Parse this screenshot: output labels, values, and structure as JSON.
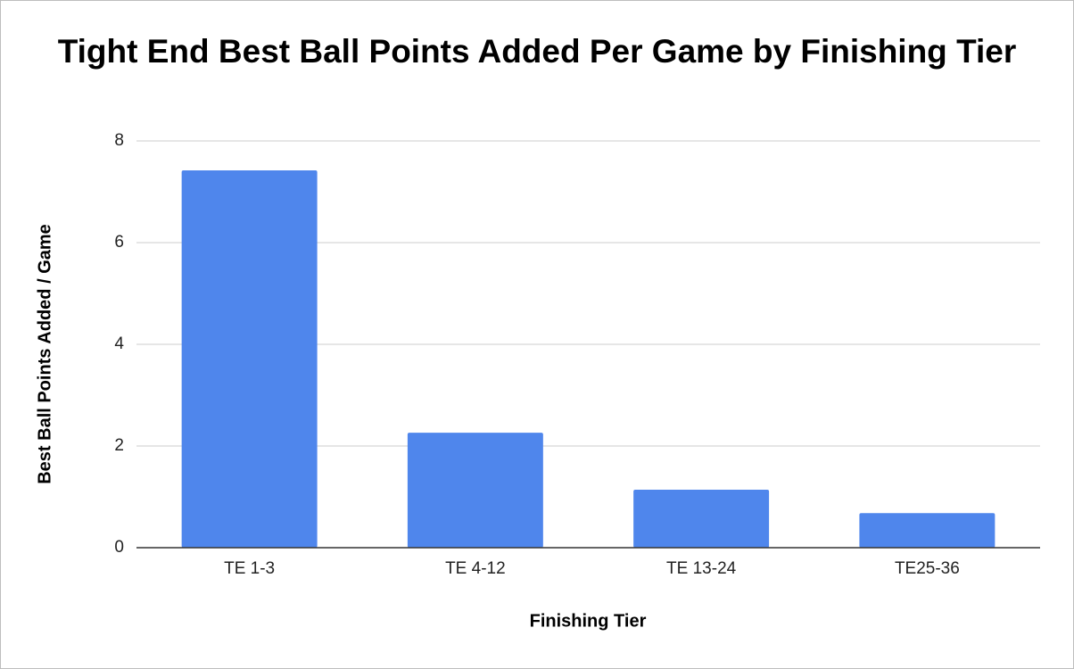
{
  "chart_data": {
    "type": "bar",
    "title": "Tight End Best Ball Points Added Per Game by Finishing Tier",
    "x_label": "Finishing Tier",
    "y_label": "Best Ball Points Added / Game",
    "categories": [
      "TE 1-3",
      "TE 4-12",
      "TE 13-24",
      "TE25-36"
    ],
    "values": [
      7.42,
      2.26,
      1.14,
      0.68
    ],
    "color": "#4f86ec",
    "ylim": [
      0,
      8
    ],
    "yticks": [
      0,
      2,
      4,
      6,
      8
    ],
    "grid": true
  }
}
